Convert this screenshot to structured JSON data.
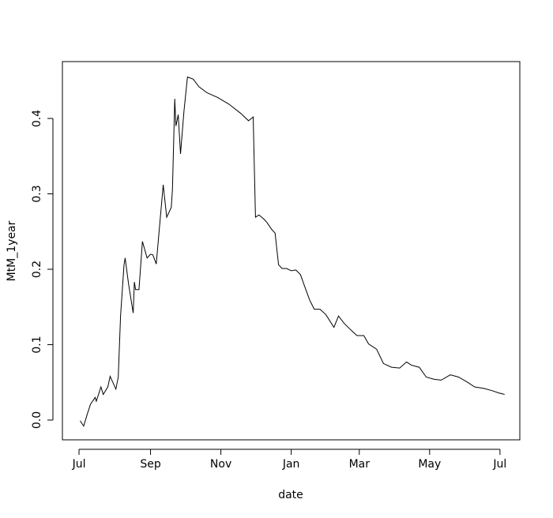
{
  "chart_data": {
    "type": "line",
    "x_label": "date",
    "y_label": "MtM_1year",
    "series": [
      {
        "name": "MtM_1year",
        "color": "#000000",
        "x": [
          1,
          4,
          7,
          10,
          14,
          15,
          19,
          21,
          25,
          27,
          32,
          34,
          36,
          39,
          40,
          43,
          47,
          48,
          49,
          52,
          55,
          59,
          62,
          64,
          67,
          69,
          73,
          76,
          80,
          81,
          83,
          84,
          86,
          88,
          91,
          94,
          99,
          104,
          111,
          120,
          130,
          140,
          147,
          151,
          151.5,
          153,
          156,
          160,
          163,
          167,
          170,
          173,
          176,
          180,
          184,
          188,
          192,
          195,
          200,
          204,
          209,
          214,
          221,
          225,
          230,
          236,
          241,
          247,
          251,
          258,
          264,
          271,
          278,
          284,
          288,
          295,
          301,
          308,
          314,
          322,
          329,
          336,
          343,
          351,
          358,
          364,
          369
        ],
        "values": [
          -0.001,
          -0.008,
          0.007,
          0.021,
          0.03,
          0.025,
          0.044,
          0.034,
          0.044,
          0.058,
          0.041,
          0.057,
          0.138,
          0.206,
          0.215,
          0.18,
          0.142,
          0.183,
          0.173,
          0.173,
          0.237,
          0.215,
          0.22,
          0.219,
          0.207,
          0.243,
          0.312,
          0.269,
          0.282,
          0.306,
          0.426,
          0.39,
          0.405,
          0.353,
          0.41,
          0.455,
          0.452,
          0.442,
          0.434,
          0.428,
          0.419,
          0.407,
          0.397,
          0.402,
          0.369,
          0.269,
          0.272,
          0.267,
          0.262,
          0.253,
          0.248,
          0.206,
          0.201,
          0.201,
          0.198,
          0.199,
          0.193,
          0.18,
          0.159,
          0.147,
          0.147,
          0.14,
          0.123,
          0.138,
          0.128,
          0.119,
          0.112,
          0.112,
          0.101,
          0.094,
          0.075,
          0.07,
          0.069,
          0.077,
          0.073,
          0.07,
          0.057,
          0.054,
          0.053,
          0.06,
          0.057,
          0.051,
          0.044,
          0.042,
          0.039,
          0.036,
          0.034
        ]
      }
    ],
    "xlim": [
      -14.4,
      382.2
    ],
    "ylim": [
      -0.0262,
      0.4754
    ],
    "xticks": [
      {
        "value": 0,
        "label": "Jul"
      },
      {
        "value": 62,
        "label": "Sep"
      },
      {
        "value": 123,
        "label": "Nov"
      },
      {
        "value": 184,
        "label": "Jan"
      },
      {
        "value": 243,
        "label": "Mar"
      },
      {
        "value": 304,
        "label": "May"
      },
      {
        "value": 365,
        "label": "Jul"
      }
    ],
    "yticks": [
      {
        "value": 0,
        "label": "0.0"
      },
      0.1,
      0.2,
      0.3,
      0.4
    ]
  }
}
